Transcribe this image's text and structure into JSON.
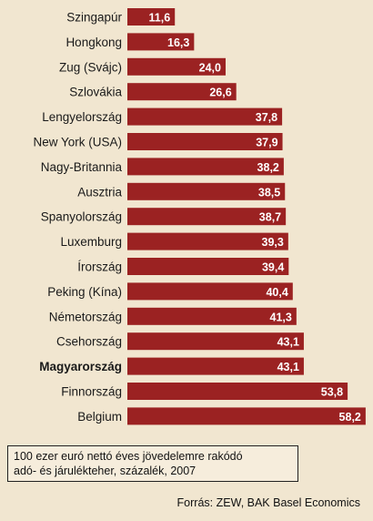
{
  "chart_data": {
    "type": "bar",
    "orientation": "horizontal",
    "categories": [
      "Szingapúr",
      "Hongkong",
      "Zug (Svájc)",
      "Szlovákia",
      "Lengyelország",
      "New York (USA)",
      "Nagy-Britannia",
      "Ausztria",
      "Spanyolország",
      "Luxemburg",
      "Írország",
      "Peking (Kína)",
      "Németország",
      "Csehország",
      "Magyarország",
      "Finnország",
      "Belgium"
    ],
    "values": [
      11.6,
      16.3,
      24.0,
      26.6,
      37.8,
      37.9,
      38.2,
      38.5,
      38.7,
      39.3,
      39.4,
      40.4,
      41.3,
      43.1,
      43.1,
      53.8,
      58.2
    ],
    "value_labels": [
      "11,6",
      "16,3",
      "24,0",
      "26,6",
      "37,8",
      "37,9",
      "38,2",
      "38,5",
      "38,7",
      "39,3",
      "39,4",
      "40,4",
      "41,3",
      "43,1",
      "43,1",
      "53,8",
      "58,2"
    ],
    "highlight_category": "Magyarország",
    "bar_color": "#9b2222",
    "background_color": "#f1e6d0",
    "grid": false,
    "legend": "none"
  },
  "note": {
    "line1": "100 ezer euró nettó éves jövedelemre rakódó",
    "line2": "adó- és járulékteher, százalék, 2007"
  },
  "source": "Forrás: ZEW, BAK Basel Economics"
}
